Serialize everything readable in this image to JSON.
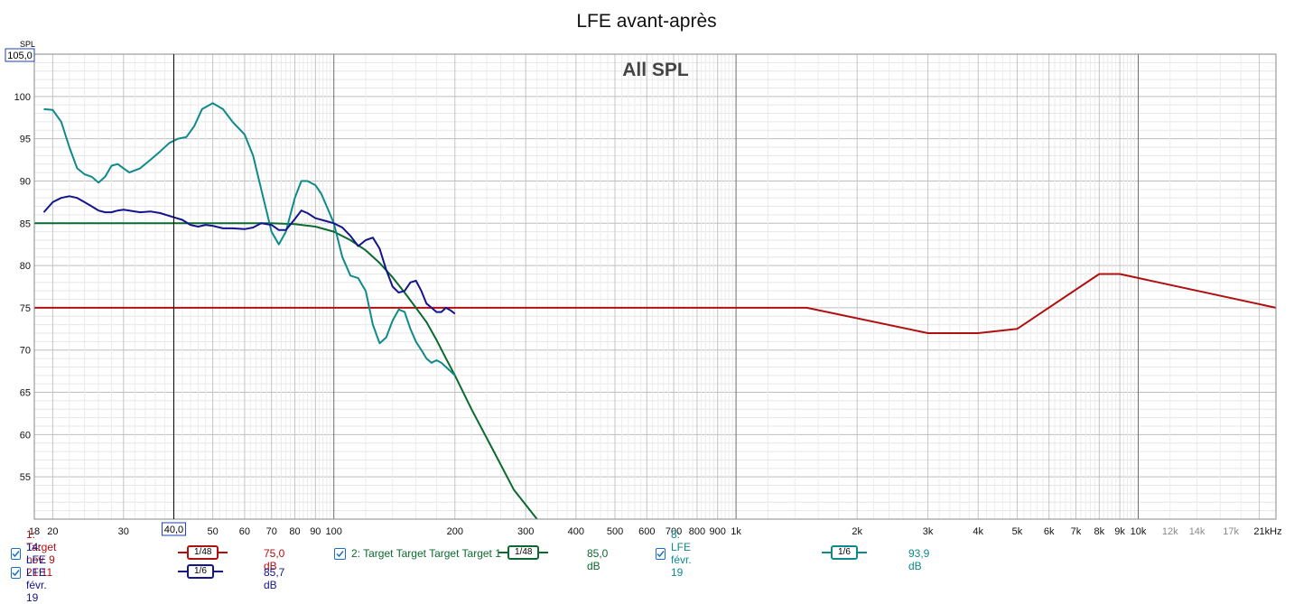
{
  "chart_data": {
    "type": "line",
    "title": "LFE avant-après",
    "subtitle": "All SPL",
    "ylabel": "SPL",
    "xlabel": "",
    "x_scale": "log",
    "xlim": [
      18,
      22000
    ],
    "ylim": [
      50,
      105
    ],
    "grid": true,
    "cursor": {
      "x_label": "40,0",
      "y_label": "105,0",
      "x": 40
    },
    "y_ticks": [
      55,
      60,
      65,
      70,
      75,
      80,
      85,
      90,
      95,
      100
    ],
    "x_tick_labels": [
      {
        "x": 18,
        "label": "18"
      },
      {
        "x": 20,
        "label": "20"
      },
      {
        "x": 30,
        "label": "30"
      },
      {
        "x": 50,
        "label": "50"
      },
      {
        "x": 60,
        "label": "60"
      },
      {
        "x": 70,
        "label": "70"
      },
      {
        "x": 80,
        "label": "80"
      },
      {
        "x": 90,
        "label": "90"
      },
      {
        "x": 100,
        "label": "100"
      },
      {
        "x": 200,
        "label": "200"
      },
      {
        "x": 300,
        "label": "300"
      },
      {
        "x": 400,
        "label": "400"
      },
      {
        "x": 500,
        "label": "500"
      },
      {
        "x": 600,
        "label": "600"
      },
      {
        "x": 700,
        "label": "700"
      },
      {
        "x": 800,
        "label": "800"
      },
      {
        "x": 900,
        "label": "900"
      },
      {
        "x": 1000,
        "label": "1k"
      },
      {
        "x": 2000,
        "label": "2k"
      },
      {
        "x": 3000,
        "label": "3k"
      },
      {
        "x": 4000,
        "label": "4k"
      },
      {
        "x": 5000,
        "label": "5k"
      },
      {
        "x": 6000,
        "label": "6k"
      },
      {
        "x": 7000,
        "label": "7k"
      },
      {
        "x": 8000,
        "label": "8k"
      },
      {
        "x": 9000,
        "label": "9k"
      },
      {
        "x": 10000,
        "label": "10k"
      },
      {
        "x": 12000,
        "label": "12k"
      },
      {
        "x": 14000,
        "label": "14k"
      },
      {
        "x": 17000,
        "label": "17k"
      },
      {
        "x": 21000,
        "label": "21kHz"
      }
    ],
    "series": [
      {
        "name": "1: Target nov. 9 21:11",
        "color": "#b01010",
        "smoothing": "1/48",
        "level": "75,0 dB",
        "points": [
          [
            18,
            75
          ],
          [
            1500,
            75
          ],
          [
            3000,
            72
          ],
          [
            4000,
            72
          ],
          [
            5000,
            72.5
          ],
          [
            8000,
            79
          ],
          [
            9000,
            79
          ],
          [
            22000,
            75
          ]
        ]
      },
      {
        "name": "2: Target Target Target Target 1",
        "color": "#0b6a2e",
        "smoothing": "1/48",
        "level": "85,0 dB",
        "points": [
          [
            18,
            85
          ],
          [
            40,
            85
          ],
          [
            60,
            85
          ],
          [
            70,
            85
          ],
          [
            80,
            84.9
          ],
          [
            90,
            84.6
          ],
          [
            100,
            84
          ],
          [
            110,
            83
          ],
          [
            120,
            81.8
          ],
          [
            130,
            80.3
          ],
          [
            140,
            78.6
          ],
          [
            150,
            76.8
          ],
          [
            160,
            75
          ],
          [
            170,
            73.3
          ],
          [
            180,
            71.2
          ],
          [
            190,
            69
          ],
          [
            200,
            67
          ],
          [
            220,
            63
          ],
          [
            250,
            58
          ],
          [
            280,
            53.5
          ],
          [
            320,
            50
          ]
        ]
      },
      {
        "name": "8: LFE févr. 19",
        "color": "#0e8a8a",
        "smoothing": "1/6",
        "level": "93,9 dB",
        "points": [
          [
            19,
            98.5
          ],
          [
            20,
            98.4
          ],
          [
            21,
            97
          ],
          [
            22,
            94
          ],
          [
            23,
            91.5
          ],
          [
            24,
            90.8
          ],
          [
            25,
            90.5
          ],
          [
            26,
            89.8
          ],
          [
            27,
            90.5
          ],
          [
            28,
            91.8
          ],
          [
            29,
            92
          ],
          [
            30,
            91.5
          ],
          [
            31,
            91
          ],
          [
            33,
            91.5
          ],
          [
            35,
            92.5
          ],
          [
            37,
            93.5
          ],
          [
            39,
            94.5
          ],
          [
            41,
            95
          ],
          [
            43,
            95.2
          ],
          [
            45,
            96.5
          ],
          [
            47,
            98.5
          ],
          [
            50,
            99.2
          ],
          [
            53,
            98.5
          ],
          [
            56,
            97
          ],
          [
            60,
            95.5
          ],
          [
            63,
            93
          ],
          [
            66,
            89
          ],
          [
            70,
            84
          ],
          [
            73,
            82.5
          ],
          [
            76,
            84
          ],
          [
            80,
            88
          ],
          [
            83,
            90
          ],
          [
            86,
            90
          ],
          [
            90,
            89.5
          ],
          [
            93,
            88.5
          ],
          [
            96,
            87
          ],
          [
            100,
            85
          ],
          [
            105,
            81
          ],
          [
            110,
            78.8
          ],
          [
            115,
            78.5
          ],
          [
            120,
            77
          ],
          [
            125,
            73
          ],
          [
            130,
            70.8
          ],
          [
            135,
            71.5
          ],
          [
            140,
            73.5
          ],
          [
            145,
            74.8
          ],
          [
            150,
            74.5
          ],
          [
            155,
            72.5
          ],
          [
            160,
            71
          ],
          [
            165,
            70
          ],
          [
            170,
            69
          ],
          [
            175,
            68.5
          ],
          [
            180,
            68.8
          ],
          [
            185,
            68.5
          ],
          [
            190,
            68
          ],
          [
            200,
            67
          ]
        ]
      },
      {
        "name": "14: LFE LFE févr. 19",
        "color": "#14148c",
        "smoothing": "1/6",
        "level": "85,7 dB",
        "points": [
          [
            19,
            86.3
          ],
          [
            20,
            87.5
          ],
          [
            21,
            88
          ],
          [
            22,
            88.2
          ],
          [
            23,
            88
          ],
          [
            24,
            87.5
          ],
          [
            25,
            87
          ],
          [
            26,
            86.5
          ],
          [
            27,
            86.3
          ],
          [
            28,
            86.3
          ],
          [
            29,
            86.5
          ],
          [
            30,
            86.6
          ],
          [
            31,
            86.5
          ],
          [
            33,
            86.3
          ],
          [
            35,
            86.4
          ],
          [
            37,
            86.2
          ],
          [
            40,
            85.7
          ],
          [
            42,
            85.4
          ],
          [
            44,
            84.8
          ],
          [
            46,
            84.6
          ],
          [
            48,
            84.8
          ],
          [
            50,
            84.7
          ],
          [
            53,
            84.4
          ],
          [
            56,
            84.4
          ],
          [
            60,
            84.3
          ],
          [
            63,
            84.5
          ],
          [
            66,
            85
          ],
          [
            70,
            84.8
          ],
          [
            73,
            84.2
          ],
          [
            76,
            84.2
          ],
          [
            80,
            85.5
          ],
          [
            83,
            86.5
          ],
          [
            86,
            86.2
          ],
          [
            90,
            85.6
          ],
          [
            95,
            85.3
          ],
          [
            100,
            85
          ],
          [
            105,
            84.5
          ],
          [
            110,
            83.5
          ],
          [
            115,
            82.3
          ],
          [
            120,
            83
          ],
          [
            125,
            83.3
          ],
          [
            130,
            82
          ],
          [
            135,
            79.5
          ],
          [
            140,
            77.5
          ],
          [
            145,
            76.8
          ],
          [
            150,
            77
          ],
          [
            155,
            78
          ],
          [
            160,
            78.2
          ],
          [
            165,
            77
          ],
          [
            170,
            75.5
          ],
          [
            175,
            75
          ],
          [
            180,
            74.5
          ],
          [
            185,
            74.5
          ],
          [
            190,
            75
          ],
          [
            195,
            74.7
          ],
          [
            200,
            74.3
          ]
        ]
      }
    ]
  },
  "legend": [
    {
      "label": "1: Target nov. 9 21:11",
      "smoothing": "1/48",
      "value": "75,0 dB",
      "color": "#b01010",
      "checked": true
    },
    {
      "label": "2: Target Target Target Target 1",
      "smoothing": "1/48",
      "value": "85,0 dB",
      "color": "#0b6a2e",
      "checked": true
    },
    {
      "label": "8: LFE févr. 19",
      "smoothing": "1/6",
      "value": "93,9 dB",
      "color": "#0e8a8a",
      "checked": true
    },
    {
      "label": "14: LFE LFE févr. 19",
      "smoothing": "1/6",
      "value": "85,7 dB",
      "color": "#14148c",
      "checked": true
    }
  ]
}
